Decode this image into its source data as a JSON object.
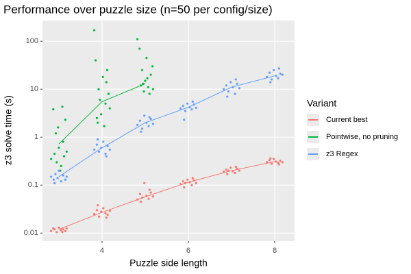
{
  "chart_data": {
    "type": "scatter",
    "title": "Performance over puzzle size (n=50 per config/size)",
    "x_label": "Puzzle side length",
    "y_label": "z3 solve time (s)",
    "legend_title": "Variant",
    "legend_position": "right",
    "log_y": true,
    "grid": true,
    "xlim": [
      2.62,
      8.46
    ],
    "xticks": [
      4,
      6,
      8
    ],
    "ylim": [
      0.0068,
      270
    ],
    "yticks": [
      0.01,
      0.1,
      1,
      10,
      100
    ],
    "series": [
      {
        "name": "Current best",
        "color": "#F8766D",
        "x": [
          3,
          4,
          5,
          6,
          7,
          8
        ],
        "values": [
          0.012,
          0.027,
          0.057,
          0.115,
          0.2,
          0.31
        ],
        "points_x": [
          2.82,
          2.9,
          2.95,
          3.0,
          3.05,
          3.1,
          3.15,
          3.18,
          2.87,
          3.08,
          3.82,
          3.88,
          3.93,
          3.98,
          4.03,
          4.08,
          4.13,
          4.18,
          3.9,
          4.1,
          4.82,
          4.88,
          4.93,
          4.98,
          5.03,
          5.08,
          5.13,
          5.18,
          4.9,
          5.1,
          5.82,
          5.88,
          5.93,
          5.98,
          6.03,
          6.08,
          6.13,
          6.18,
          5.9,
          6.1,
          6.82,
          6.88,
          6.93,
          6.98,
          7.03,
          7.08,
          7.13,
          7.18,
          6.9,
          7.1,
          7.82,
          7.88,
          7.93,
          7.98,
          8.03,
          8.08,
          8.13,
          8.18,
          7.9,
          8.1
        ],
        "points_y": [
          0.011,
          0.012,
          0.0105,
          0.013,
          0.0115,
          0.012,
          0.011,
          0.0125,
          0.0125,
          0.0105,
          0.025,
          0.03,
          0.022,
          0.028,
          0.033,
          0.026,
          0.024,
          0.029,
          0.038,
          0.021,
          0.05,
          0.065,
          0.055,
          0.11,
          0.06,
          0.052,
          0.07,
          0.058,
          0.045,
          0.08,
          0.105,
          0.12,
          0.11,
          0.13,
          0.115,
          0.1,
          0.125,
          0.11,
          0.09,
          0.14,
          0.19,
          0.21,
          0.2,
          0.23,
          0.195,
          0.18,
          0.22,
          0.2,
          0.17,
          0.24,
          0.3,
          0.33,
          0.28,
          0.35,
          0.31,
          0.29,
          0.32,
          0.3,
          0.36,
          0.27
        ]
      },
      {
        "name": "Pointwise, no pruning",
        "color": "#00BA38",
        "x": [
          3,
          4,
          5
        ],
        "values": [
          0.72,
          5.5,
          13
        ],
        "points_x": [
          2.82,
          2.87,
          2.9,
          2.95,
          3.0,
          3.05,
          3.08,
          3.1,
          3.15,
          3.18,
          2.93,
          3.12,
          3.03,
          2.98,
          3.82,
          3.85,
          3.88,
          3.92,
          3.95,
          3.98,
          4.02,
          4.05,
          4.08,
          4.12,
          4.15,
          4.18,
          3.9,
          4.1,
          4.82,
          4.87,
          4.9,
          4.93,
          4.97,
          5.0,
          5.03,
          5.07,
          5.1,
          5.13,
          5.17,
          5.18,
          4.95,
          5.05
        ],
        "points_y": [
          0.35,
          3.8,
          0.45,
          0.3,
          0.6,
          0.25,
          4.3,
          0.8,
          2.3,
          0.5,
          1.2,
          0.4,
          0.2,
          1.6,
          170,
          40,
          2.5,
          10,
          6,
          3,
          18,
          1.7,
          5,
          25,
          8,
          4,
          2,
          14,
          110,
          70,
          12,
          25,
          9,
          15,
          45,
          11,
          8,
          20,
          30,
          10,
          13,
          17
        ]
      },
      {
        "name": "z3 Regex",
        "color": "#619CFF",
        "x": [
          3,
          4,
          5,
          6,
          7,
          8
        ],
        "values": [
          0.15,
          0.6,
          2,
          4.2,
          11,
          19
        ],
        "points_x": [
          2.82,
          2.88,
          2.92,
          2.97,
          3.0,
          3.05,
          3.1,
          3.15,
          3.18,
          2.9,
          3.82,
          3.88,
          3.93,
          3.98,
          4.03,
          4.08,
          4.13,
          4.18,
          3.9,
          4.1,
          4.82,
          4.88,
          4.93,
          4.98,
          5.03,
          5.08,
          5.13,
          5.18,
          4.9,
          5.1,
          5.82,
          5.88,
          5.93,
          5.98,
          6.03,
          6.08,
          6.13,
          6.18,
          5.9,
          6.1,
          6.82,
          6.88,
          6.93,
          6.98,
          7.03,
          7.08,
          7.13,
          7.18,
          6.9,
          7.1,
          7.82,
          7.88,
          7.93,
          7.98,
          8.03,
          8.08,
          8.13,
          8.18,
          7.9,
          8.1
        ],
        "points_y": [
          0.15,
          0.13,
          0.17,
          0.14,
          0.2,
          0.12,
          0.16,
          0.13,
          0.15,
          0.11,
          0.55,
          0.7,
          0.5,
          0.6,
          0.8,
          0.45,
          0.65,
          0.55,
          0.9,
          0.4,
          1.8,
          2.2,
          1.5,
          2.8,
          2,
          1.7,
          2.4,
          1.9,
          1.3,
          2.6,
          4,
          4.5,
          3.5,
          5,
          4.2,
          3.8,
          4.8,
          4.1,
          2.3,
          5.5,
          10,
          12,
          9,
          14,
          11,
          8,
          13,
          10.5,
          7,
          16,
          18,
          22,
          16,
          25,
          19,
          17,
          21,
          20,
          14,
          27
        ]
      }
    ]
  }
}
